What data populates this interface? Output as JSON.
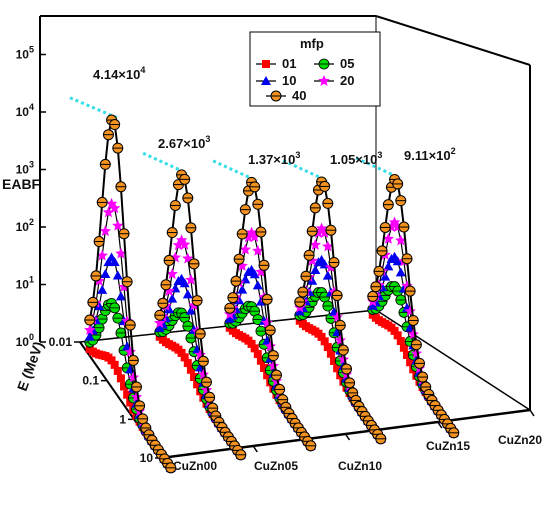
{
  "chart_data": {
    "type": "line",
    "style": "3d-waterfall",
    "ylabel": "EABF",
    "xlabel": "E (MeV)",
    "yscale": "log",
    "ylim": [
      1,
      100000
    ],
    "y_ticks": [
      {
        "v": 1,
        "base": "10",
        "exp": "0"
      },
      {
        "v": 10,
        "base": "10",
        "exp": "1"
      },
      {
        "v": 100,
        "base": "10",
        "exp": "2"
      },
      {
        "v": 1000,
        "base": "10",
        "exp": "3"
      },
      {
        "v": 10000,
        "base": "10",
        "exp": "4"
      },
      {
        "v": 100000,
        "base": "10",
        "exp": "5"
      }
    ],
    "energy_ticks": [
      "0.01",
      "0.1",
      "1",
      "10"
    ],
    "energy_range": [
      0.015,
      15
    ],
    "materials": [
      "CuZn00",
      "CuZn05",
      "CuZn10",
      "CuZn15",
      "CuZn20"
    ],
    "legend": {
      "title": "mfp",
      "position": "top-right"
    },
    "series": [
      {
        "name": "01",
        "color": "#ff0000",
        "marker": "square",
        "peaks": [
          2.5,
          2.0,
          2.0,
          2.0,
          2.0
        ]
      },
      {
        "name": "05",
        "color": "#00dd00",
        "marker": "circle",
        "peaks": [
          25,
          10,
          9,
          12,
          12
        ]
      },
      {
        "name": "10",
        "color": "#0000ee",
        "marker": "triangle",
        "peaks": [
          160,
          40,
          40,
          45,
          40
        ]
      },
      {
        "name": "20",
        "color": "#ff00ff",
        "marker": "star",
        "peaks": [
          1400,
          190,
          180,
          160,
          160
        ]
      },
      {
        "name": "40",
        "color": "#f4921f",
        "marker": "circle",
        "peaks": [
          41400,
          2670,
          1370,
          1050,
          911
        ]
      }
    ],
    "peak_labels": [
      {
        "base": "4.14×10",
        "exp": "4"
      },
      {
        "base": "2.67×10",
        "exp": "3"
      },
      {
        "base": "1.37×10",
        "exp": "3"
      },
      {
        "base": "1.05×10",
        "exp": "3"
      },
      {
        "base": "9.11×10",
        "exp": "2"
      }
    ],
    "grid": false
  }
}
